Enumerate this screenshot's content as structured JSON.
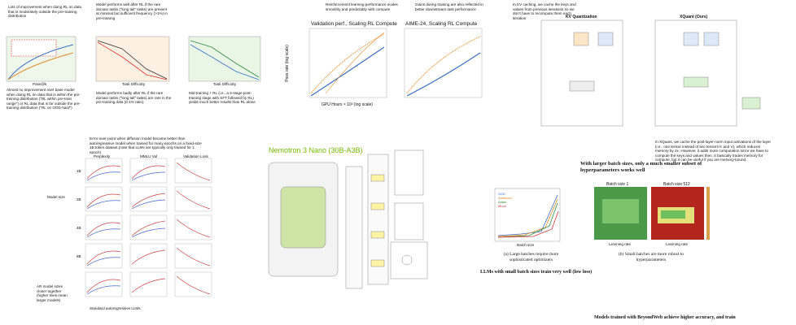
{
  "panel_rl_data": {
    "notes": [
      "Lots of improvement when doing RL on data that is moderately outside the pre-training distribution",
      "Model performs well after RL if the rare domain tasks (\"long tail\" tasks) are present at minimal but sufficient frequency (>1%) in pre-training",
      "Almost no improvement over base model when doing RL on data that is within the pre-training distribution (\"RL within pre-train range\") or RL data that is far outside the pre-training distribution (\"RL on OOD-hard\")",
      "Model performs badly after RL if the rare domain tasks (\"long tail\" tasks) are rare in the pre-training data (0.1% ratio)",
      "Mid-training + RL (i.e., a 2-stage post-training stage with SFT followed by RL) yields much better results than RL alone"
    ],
    "x_labels": [
      "Pass@k",
      "Task Difficulty",
      "Task Difficulty"
    ]
  },
  "panel_rl_scaling": {
    "notes": [
      "Reinforcement learning performance scales smoothly and predictably with compute",
      "Gains during training are also reflected in better downstream task performance"
    ],
    "titles": [
      "Validation perf., Scaling RL Compute",
      "AIME-24, Scaling RL Compute"
    ],
    "y_label": "Pass rate (log scale)",
    "x_label": "GPU Hours × 10³ (log scale)"
  },
  "panel_xquant": {
    "notes": [
      "In KV caching, we cache the keys and values from previous iterations so we don't have to recompute them each iteration",
      "In XQuant, we cache the post-layer-norm input activations of the layer (i.e., one tensor instead of two tensors K and V), which reduces memory by 2x. However, it adds more computation since we have to compute the keys and values then. It basically trades memory for compute, but it can be useful if you are memory-bound."
    ],
    "titles": [
      "KV Quantization",
      "XQuant (Ours)"
    ]
  },
  "panel_diffusion": {
    "notes": [
      "Error-over-point when diffusion model became better than autoregressive model when trained for many epochs on a fixed-size 1B token dataset (note that LLMs are typically only trained for 1 epoch)",
      "Model size",
      "AR model sizes closer together (higher lines mean larger models)",
      "Standard autoregressive LLMs"
    ],
    "columns": [
      "Perplexity",
      "MMLU Val",
      "Validation Loss"
    ],
    "rows": [
      "1B",
      "2B",
      "4B",
      "8B"
    ]
  },
  "panel_nemotron": {
    "title": "Nemotron 3 Nano (30B-A3B)"
  },
  "panel_batch": {
    "notes": [
      "LLMs with small batch sizes train very well (low loss)",
      "With larger batch sizes, only a much smaller subset of hyperparameters works well"
    ],
    "legend": [
      "SGD",
      "Adafactor",
      "Adam",
      "Muon"
    ],
    "x_label": "Batch size",
    "heatmap_titles": [
      "Batch size 1",
      "Batch size 512"
    ],
    "heatmap_x_label": "Learning rate",
    "captions": [
      "(a) Large batches require more sophisticated optimizers",
      "(b) Small batches are more robust to hyperparameters"
    ]
  },
  "footer": {
    "text": "Models trained with BeyondWeb achieve higher accuracy, and train"
  }
}
